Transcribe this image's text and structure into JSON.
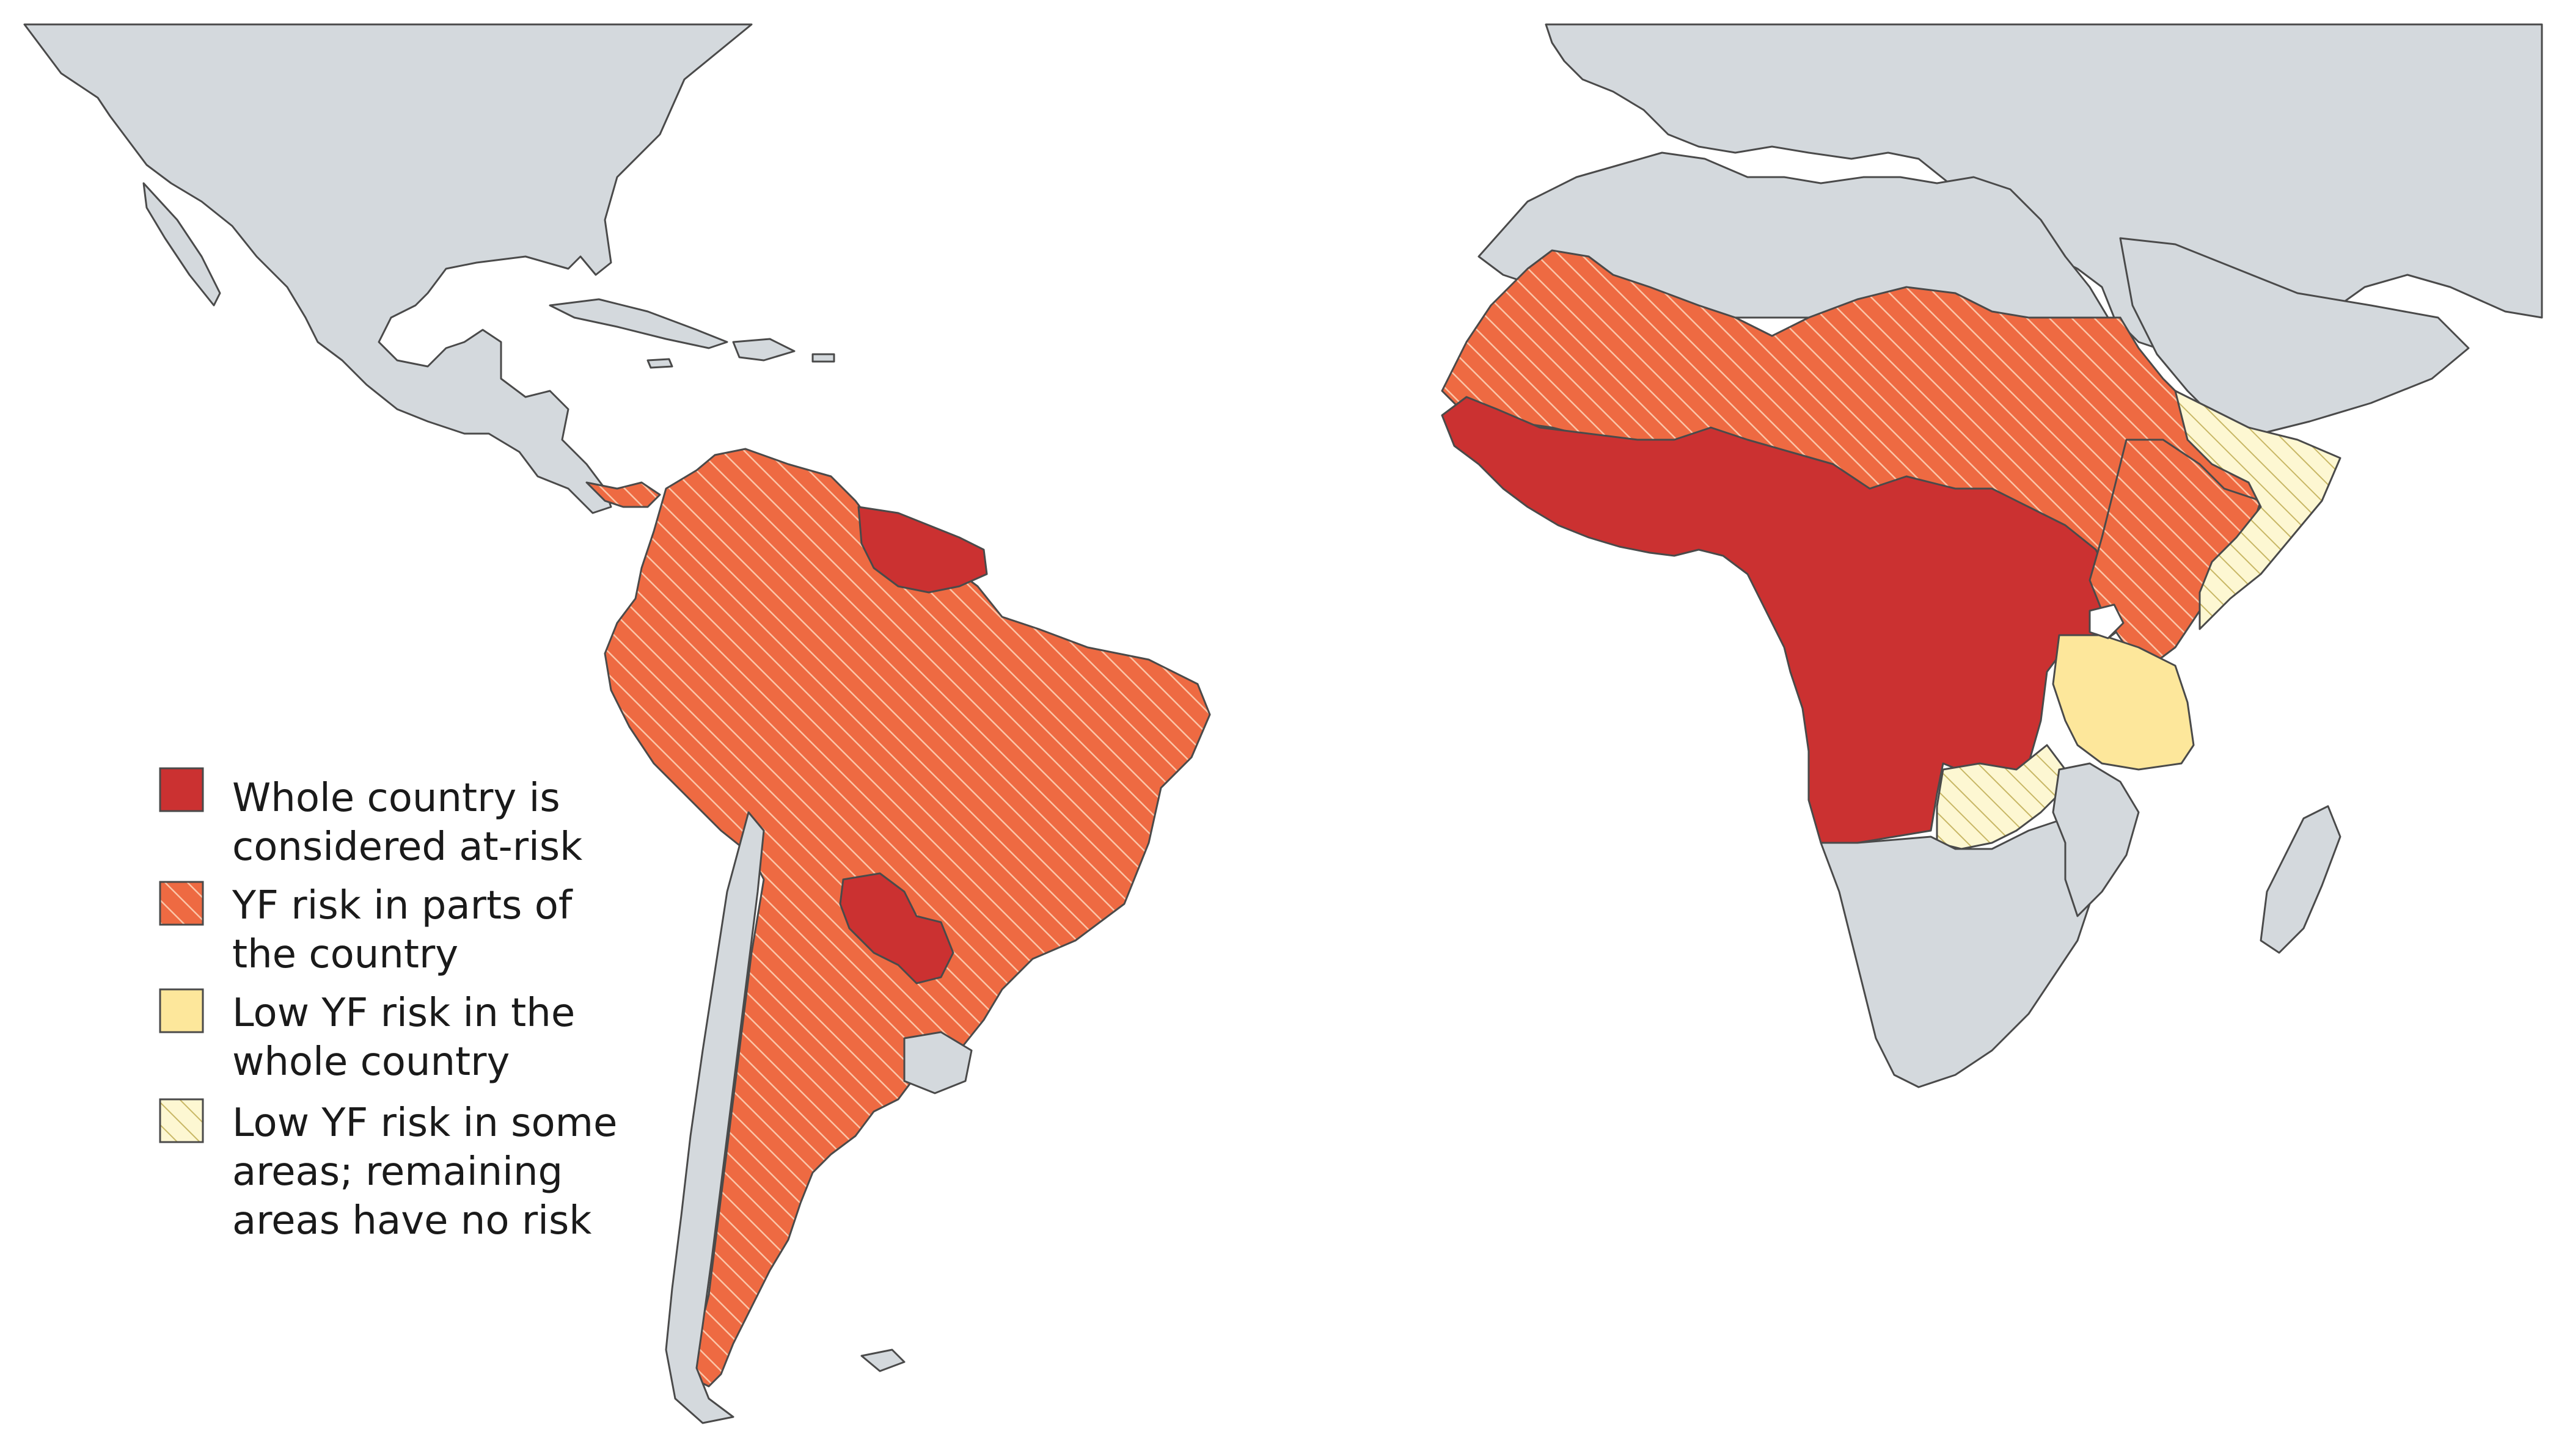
{
  "colors": {
    "whole_country": "#cb3131",
    "partial_risk": "#ee6a42",
    "partial_hatch": "#fbc5a8",
    "low_risk_whole": "#fde79b",
    "low_risk_some_bg": "#fdf7d2",
    "low_risk_some_hatch": "#c8b765",
    "no_risk_land": "#d4d9dd",
    "border": "#4a4a4a",
    "sea": "#ffffff"
  },
  "legend": {
    "whole_country": {
      "line1": "Whole country is",
      "line2": "considered at-risk"
    },
    "partial_risk": {
      "line1": "YF risk in parts of",
      "line2": "the country"
    },
    "low_risk_whole": {
      "line1": "Low YF risk in the",
      "line2": "whole country"
    },
    "low_risk_some": {
      "line1": "Low YF risk in some",
      "line2": "areas; remaining",
      "line3": "areas have no risk"
    }
  }
}
